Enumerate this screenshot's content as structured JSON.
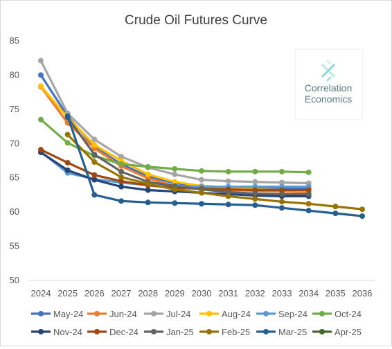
{
  "chart_data": {
    "type": "line",
    "title": "Crude Oil Futures Curve",
    "xlabel": "",
    "ylabel": "",
    "x": [
      "2024",
      "2025",
      "2026",
      "2027",
      "2028",
      "2029",
      "2030",
      "2031",
      "2032",
      "2033",
      "2034",
      "2035",
      "2036"
    ],
    "ylim": [
      50,
      85
    ],
    "yticks": [
      50,
      55,
      60,
      65,
      70,
      75,
      80,
      85
    ],
    "grid": false,
    "legend_position": "bottom",
    "series": [
      {
        "name": "May-24",
        "color": "#4472C4",
        "values": [
          80.0,
          74.0,
          69.5,
          67.0,
          65.2,
          64.2,
          63.8,
          63.6,
          63.5,
          63.5,
          63.4,
          null,
          null
        ]
      },
      {
        "name": "Jun-24",
        "color": "#ED7D31",
        "values": [
          78.3,
          73.0,
          69.3,
          66.7,
          64.9,
          63.8,
          63.4,
          63.2,
          63.1,
          63.0,
          62.9,
          null,
          null
        ]
      },
      {
        "name": "Jul-24",
        "color": "#A5A5A5",
        "values": [
          82.1,
          74.4,
          70.6,
          68.1,
          66.5,
          65.5,
          64.7,
          64.5,
          64.4,
          64.3,
          64.2,
          null,
          null
        ]
      },
      {
        "name": "Aug-24",
        "color": "#FFC000",
        "values": [
          78.4,
          73.8,
          69.8,
          67.5,
          65.5,
          64.4,
          63.8,
          63.5,
          63.3,
          63.2,
          63.1,
          null,
          null
        ]
      },
      {
        "name": "Sep-24",
        "color": "#5B9BD5",
        "values": [
          68.8,
          65.7,
          64.8,
          64.3,
          63.9,
          63.8,
          63.7,
          63.7,
          63.7,
          63.7,
          63.7,
          null,
          null
        ]
      },
      {
        "name": "Oct-24",
        "color": "#70AD47",
        "values": [
          73.5,
          70.1,
          68.2,
          67.0,
          66.6,
          66.3,
          66.0,
          65.9,
          65.9,
          65.9,
          65.8,
          null,
          null
        ]
      },
      {
        "name": "Nov-24",
        "color": "#264478",
        "values": [
          68.7,
          66.1,
          64.7,
          63.7,
          63.2,
          63.0,
          62.8,
          62.6,
          62.4,
          62.3,
          62.3,
          null,
          null
        ]
      },
      {
        "name": "Dec-24",
        "color": "#9E480E",
        "values": [
          69.1,
          67.2,
          65.4,
          64.5,
          63.9,
          63.5,
          63.4,
          63.3,
          63.2,
          63.2,
          63.2,
          null,
          null
        ]
      },
      {
        "name": "Jan-25",
        "color": "#636363",
        "values": [
          null,
          73.8,
          68.4,
          65.9,
          64.4,
          63.8,
          63.3,
          62.9,
          62.7,
          62.6,
          62.6,
          null,
          null
        ]
      },
      {
        "name": "Feb-25",
        "color": "#997300",
        "values": [
          null,
          71.3,
          67.3,
          65.1,
          64.1,
          63.3,
          62.8,
          62.3,
          61.9,
          61.5,
          61.2,
          60.8,
          60.4
        ]
      },
      {
        "name": "Mar-25",
        "color": "#255E91",
        "values": [
          null,
          74.0,
          62.5,
          61.6,
          61.4,
          61.3,
          61.2,
          61.1,
          61.0,
          60.6,
          60.2,
          59.8,
          59.4
        ]
      },
      {
        "name": "Apr-25",
        "color": "#43682B",
        "values": [
          null,
          null,
          null,
          null,
          null,
          null,
          null,
          null,
          null,
          null,
          null,
          null,
          null
        ]
      }
    ]
  },
  "logo": {
    "line1": "Correlation",
    "line2": "Economics",
    "color": "#5a7a80",
    "accent": "#7fd6cf"
  }
}
